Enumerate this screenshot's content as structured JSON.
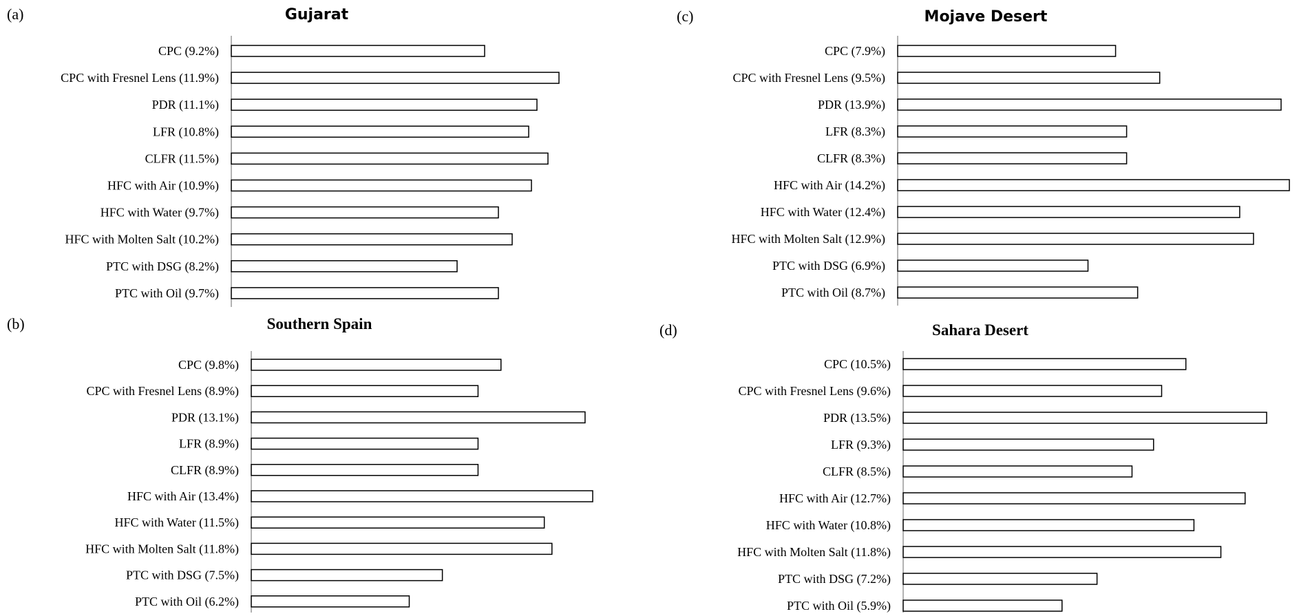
{
  "colors": {
    "bar_fill": "#ffffff",
    "bar_stroke": "#000000",
    "axis": "#7f7f7f",
    "text": "#000000"
  },
  "chart_data": [
    {
      "type": "bar",
      "orientation": "horizontal",
      "panel": "(a)",
      "title": "Gujarat",
      "categories": [
        "CPC (9.2%)",
        "CPC with Fresnel Lens (11.9%)",
        "PDR (11.1%)",
        "LFR (10.8%)",
        "CLFR (11.5%)",
        "HFC with Air (10.9%)",
        "HFC with Water (9.7%)",
        "HFC with Molten Salt (10.2%)",
        "PTC with DSG (8.2%)",
        "PTC with Oil (9.7%)"
      ],
      "values": [
        9.2,
        11.9,
        11.1,
        10.8,
        11.5,
        10.9,
        9.7,
        10.2,
        8.2,
        9.7
      ],
      "xlim": [
        0,
        14.2
      ],
      "grid": false,
      "legend": "none"
    },
    {
      "type": "bar",
      "orientation": "horizontal",
      "panel": "(b)",
      "title": "Southern Spain",
      "categories": [
        "CPC (9.8%)",
        "CPC with Fresnel Lens (8.9%)",
        "PDR (13.1%)",
        "LFR (8.9%)",
        "CLFR (8.9%)",
        "HFC with Air (13.4%)",
        "HFC with Water (11.5%)",
        "HFC with Molten Salt (11.8%)",
        "PTC with DSG (7.5%)",
        "PTC with Oil (6.2%)"
      ],
      "values": [
        9.8,
        8.9,
        13.1,
        8.9,
        8.9,
        13.4,
        11.5,
        11.8,
        7.5,
        6.2
      ],
      "xlim": [
        0,
        14.2
      ],
      "grid": false,
      "legend": "none"
    },
    {
      "type": "bar",
      "orientation": "horizontal",
      "panel": "(c)",
      "title": "Mojave Desert",
      "categories": [
        "CPC (7.9%)",
        "CPC with Fresnel Lens (9.5%)",
        "PDR (13.9%)",
        "LFR (8.3%)",
        "CLFR (8.3%)",
        "HFC with Air (14.2%)",
        "HFC with Water (12.4%)",
        "HFC with Molten Salt (12.9%)",
        "PTC with DSG (6.9%)",
        "PTC with Oil (8.7%)"
      ],
      "values": [
        7.9,
        9.5,
        13.9,
        8.3,
        8.3,
        14.2,
        12.4,
        12.9,
        6.9,
        8.7
      ],
      "xlim": [
        0,
        14.2
      ],
      "grid": false,
      "legend": "none"
    },
    {
      "type": "bar",
      "orientation": "horizontal",
      "panel": "(d)",
      "title": "Sahara Desert",
      "categories": [
        "CPC (10.5%)",
        "CPC with Fresnel Lens (9.6%)",
        "PDR (13.5%)",
        "LFR (9.3%)",
        "CLFR (8.5%)",
        "HFC with Air (12.7%)",
        "HFC with Water (10.8%)",
        "HFC with Molten Salt (11.8%)",
        "PTC with DSG (7.2%)",
        "PTC with Oil (5.9%)"
      ],
      "values": [
        10.5,
        9.6,
        13.5,
        9.3,
        8.5,
        12.7,
        10.8,
        11.8,
        7.2,
        5.9
      ],
      "xlim": [
        0,
        14.2
      ],
      "grid": false,
      "legend": "none"
    }
  ]
}
